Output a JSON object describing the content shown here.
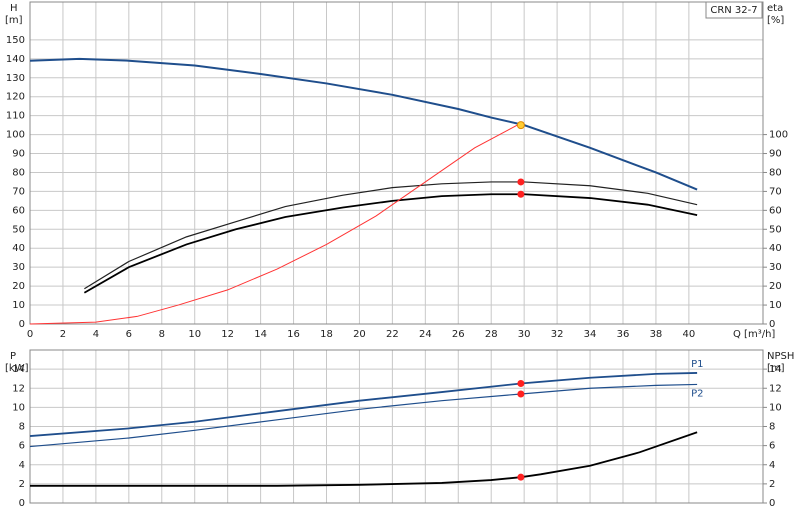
{
  "chart_data": [
    {
      "type": "line",
      "model": "CRN 32-7",
      "ylabel": "H",
      "yunit": "[m]",
      "y2label": "eta",
      "y2unit": "[%]",
      "xlabel": "Q [m³/h]",
      "xlim": [
        0,
        44.5
      ],
      "xticks": [
        0,
        2,
        4,
        6,
        8,
        10,
        12,
        14,
        16,
        18,
        20,
        22,
        24,
        26,
        28,
        30,
        32,
        34,
        36,
        38,
        40
      ],
      "xtick_labels": true,
      "ylim": [
        0,
        170
      ],
      "yticks": [
        0,
        10,
        20,
        30,
        40,
        50,
        60,
        70,
        80,
        90,
        100,
        110,
        120,
        130,
        140,
        150
      ],
      "y2lim": [
        0,
        170
      ],
      "y2ticks": [
        0,
        10,
        20,
        30,
        40,
        50,
        60,
        70,
        80,
        90,
        100
      ],
      "grid": true,
      "series": [
        {
          "color": "#1f4e8c",
          "width": 2,
          "x": [
            0,
            3,
            6,
            10,
            14,
            18,
            22,
            26,
            28,
            30,
            34,
            38,
            40.5
          ],
          "values": [
            139,
            140,
            139,
            136.5,
            132,
            127,
            121,
            113.5,
            109,
            105,
            93,
            80,
            71
          ]
        },
        {
          "color": "#222222",
          "width": 1.2,
          "axis": "y2",
          "x": [
            3.3,
            6,
            9.5,
            12.5,
            15.5,
            19,
            22,
            25,
            28,
            30,
            34,
            37.5,
            40.5
          ],
          "values": [
            18.6,
            33,
            46,
            54,
            62,
            68,
            72,
            74,
            75,
            75,
            73,
            69,
            63
          ]
        },
        {
          "color": "#000000",
          "width": 1.8,
          "axis": "y2",
          "x": [
            3.3,
            6,
            9.5,
            12.5,
            15.5,
            19,
            22,
            25,
            28,
            30,
            34,
            37.5,
            40.5
          ],
          "values": [
            16.5,
            30,
            42,
            50,
            56.5,
            61.5,
            65,
            67.5,
            68.5,
            68.5,
            66.5,
            63,
            57.5
          ]
        },
        {
          "color": "#ff3333",
          "width": 1,
          "x": [
            0,
            4,
            6.5,
            9,
            12,
            15,
            18,
            21,
            24,
            27,
            29.8
          ],
          "values": [
            0,
            1,
            4,
            10,
            18,
            29,
            42,
            57,
            75,
            93,
            106
          ]
        }
      ],
      "markers": [
        {
          "x": 29.8,
          "y": 105,
          "color": "#ffcc33"
        },
        {
          "x": 29.8,
          "y": 75,
          "axis": "y2",
          "color": "#ff2020"
        },
        {
          "x": 29.8,
          "y": 68.5,
          "axis": "y2",
          "color": "#ff2020"
        }
      ]
    },
    {
      "type": "line",
      "ylabel": "P",
      "yunit": "[kW]",
      "y2label": "NPSH",
      "y2unit": "[m]",
      "xlim": [
        0,
        44.5
      ],
      "xticks": [
        0,
        2,
        4,
        6,
        8,
        10,
        12,
        14,
        16,
        18,
        20,
        22,
        24,
        26,
        28,
        30,
        32,
        34,
        36,
        38,
        40
      ],
      "xtick_labels": false,
      "ylim": [
        0,
        16
      ],
      "yticks": [
        0,
        2,
        4,
        6,
        8,
        10,
        12,
        14
      ],
      "y2lim": [
        0,
        16
      ],
      "y2ticks": [
        0,
        2,
        4,
        6,
        8,
        10,
        12,
        14
      ],
      "grid": true,
      "series": [
        {
          "name": "P1",
          "label_position": "above",
          "color": "#1f4e8c",
          "width": 1.8,
          "x": [
            0,
            6,
            10,
            15,
            20,
            25,
            29.8,
            34,
            38,
            40.5
          ],
          "values": [
            7.0,
            7.8,
            8.5,
            9.6,
            10.7,
            11.6,
            12.5,
            13.1,
            13.5,
            13.6
          ]
        },
        {
          "name": "P2",
          "label_position": "below",
          "color": "#1f4e8c",
          "width": 1.2,
          "x": [
            0,
            6,
            10,
            15,
            20,
            25,
            29.8,
            34,
            38,
            40.5
          ],
          "values": [
            5.9,
            6.8,
            7.6,
            8.7,
            9.8,
            10.7,
            11.4,
            12.0,
            12.3,
            12.4
          ]
        },
        {
          "color": "#000000",
          "width": 1.8,
          "axis": "y2",
          "x": [
            0,
            15,
            20,
            25,
            28,
            29.8,
            31,
            34,
            37,
            40.5
          ],
          "values": [
            1.8,
            1.8,
            1.9,
            2.1,
            2.4,
            2.7,
            3.0,
            3.9,
            5.3,
            7.4
          ]
        }
      ],
      "markers": [
        {
          "x": 29.8,
          "y": 12.5,
          "color": "#ff2020"
        },
        {
          "x": 29.8,
          "y": 11.4,
          "color": "#ff2020"
        },
        {
          "x": 29.8,
          "y": 2.7,
          "axis": "y2",
          "color": "#ff2020"
        }
      ]
    }
  ]
}
